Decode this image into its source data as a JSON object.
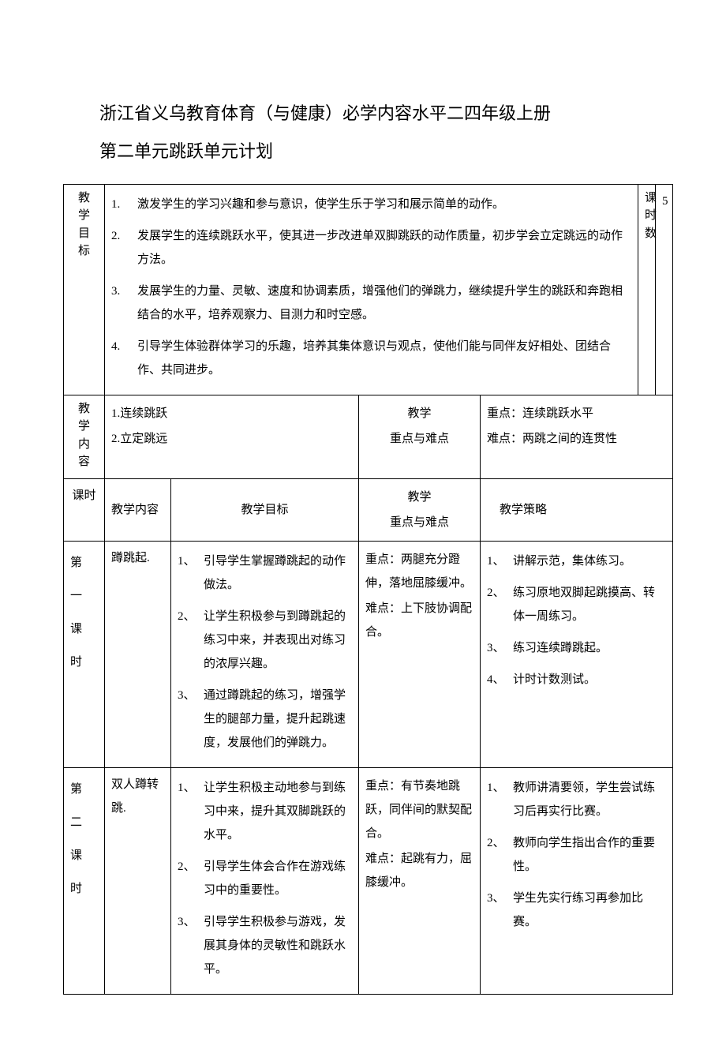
{
  "title_line1": "浙江省义乌教育体育（与健康）必学内容水平二四年级上册",
  "title_line2": "第二单元跳跃单元计划",
  "goals_header": "教 学目标",
  "goals": [
    {
      "idx": "1.",
      "text": "激发学生的学习兴趣和参与意识，使学生乐于学习和展示简单的动作。"
    },
    {
      "idx": "2.",
      "text": "发展学生的连续跳跃水平，使其进一步改进单双脚跳跃的动作质量，初步学会立定跳远的动作方法。"
    },
    {
      "idx": "3.",
      "text": "发展学生的力量、灵敏、速度和协调素质，增强他们的弹跳力，继续提升学生的跳跃和奔跑相结合的水平，培养观察力、目测力和时空感。"
    },
    {
      "idx": "4.",
      "text": "引导学生体验群体学习的乐趣，培养其集体意识与观点，使他们能与同伴友好相处、团结合作、共同进步。"
    }
  ],
  "hours_label": "课时数",
  "hours_value": "5",
  "content_header": "教学内容",
  "content_line1": "1.连续跳跃",
  "content_line2": "2.立定跳远",
  "kd_header_top": "教学",
  "kd_header_bottom": "重点与难点",
  "kd_line1": "重点：连续跳跃水平",
  "kd_line2": "难点：两跳之间的连贯性",
  "col_course": "课时",
  "col_content": "教学内容",
  "col_goal": "教学目标",
  "col_kd_top": "教学",
  "col_kd_bottom": "重点与难点",
  "col_strategy": "教学策略",
  "row1": {
    "course_label": "第一课时",
    "content": "蹲跳起.",
    "goals": [
      {
        "idx": "1",
        "text": "引导学生掌握蹲跳起的动作做法。"
      },
      {
        "idx": "2",
        "text": "让学生积极参与到蹲跳起的练习中来，并表现出对练习的浓厚兴趣。"
      },
      {
        "idx": "3",
        "text": "通过蹲跳起的练习，增强学生的腿部力量，提升起跳速度，发展他们的弹跳力。"
      }
    ],
    "kd_line1": "重点：两腿充分蹬伸，落地屈膝缓冲。",
    "kd_line2": "难点：上下肢协调配合。",
    "strategy": [
      {
        "idx": "1",
        "text": "讲解示范，集体练习。"
      },
      {
        "idx": "2",
        "text": "练习原地双脚起跳摸高、转体一周练习。"
      },
      {
        "idx": "3",
        "text": "练习连续蹲跳起。"
      },
      {
        "idx": "4",
        "text": "计时计数测试。"
      }
    ]
  },
  "row2": {
    "course_label": "第二课时",
    "content": "双人蹲转跳.",
    "goals": [
      {
        "idx": "1",
        "text": "让学生积极主动地参与到练习中来，提升其双脚跳跃的水平。"
      },
      {
        "idx": "2",
        "text": "引导学生体会合作在游戏练习中的重要性。"
      },
      {
        "idx": "3",
        "text": "引导学生积极参与游戏，发展其身体的灵敏性和跳跃水平。"
      }
    ],
    "kd_line1": "重点：有节奏地跳跃，同伴间的默契配合。",
    "kd_line2": "难点：起跳有力，屈膝缓冲。",
    "strategy": [
      {
        "idx": "1",
        "text": "教师讲清要领，学生尝试练习后再实行比赛。"
      },
      {
        "idx": "2",
        "text": "教师向学生指出合作的重要性。"
      },
      {
        "idx": "3",
        "text": "学生先实行练习再参加比赛。"
      }
    ]
  }
}
